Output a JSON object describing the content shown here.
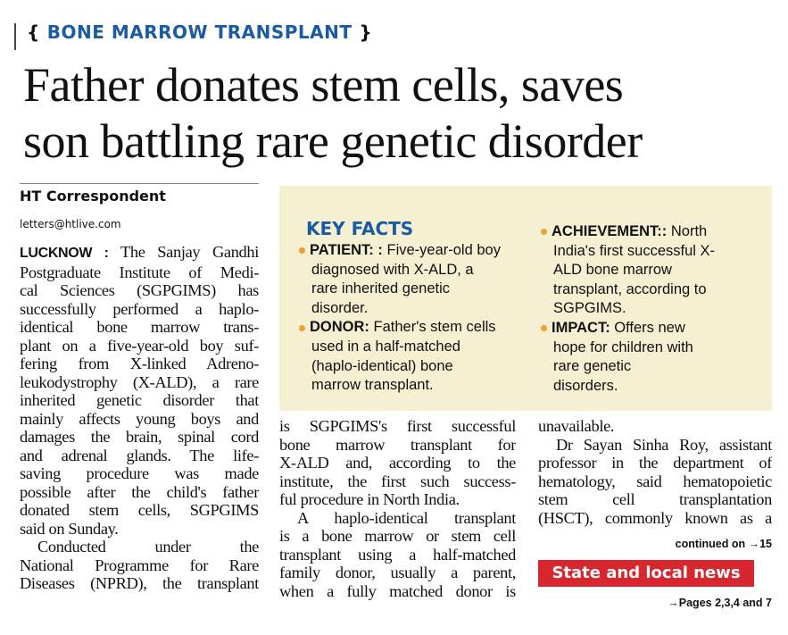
{
  "kicker": {
    "open": "{",
    "text": "BONE MARROW TRANSPLANT",
    "close": "}"
  },
  "headline": {
    "lines": [
      "Father donates stem cells, saves",
      "son battling rare genetic disorder"
    ]
  },
  "byline": {
    "author": "HT Correspondent",
    "email": "letters@htlive.com"
  },
  "key_facts": {
    "title": "KEY FACTS",
    "columns": [
      {
        "items": [
          {
            "label": "PATIENT: :",
            "lines": [
              "Five-year-old boy",
              "diagnosed with X-ALD, a",
              "rare inherited genetic",
              "disorder."
            ]
          },
          {
            "label": "DONOR:",
            "lines": [
              "Father's stem cells",
              "used in a half-matched",
              "(haplo-identical) bone",
              "marrow transplant."
            ]
          }
        ]
      },
      {
        "items": [
          {
            "label": "ACHIEVEMENT::",
            "lines": [
              "North",
              "India's first successful X-",
              "ALD bone marrow",
              "transplant, according to",
              "SGPGIMS."
            ]
          },
          {
            "label": "IMPACT:",
            "lines": [
              "Offers new",
              "hope for children with",
              "rare genetic",
              "disorders."
            ]
          }
        ]
      }
    ]
  },
  "body": {
    "dateline": "LUCKNOW :",
    "columns": [
      {
        "paragraphs": [
          {
            "lines": [
              "The Sanjay Gandhi",
              "Postgraduate Institute of Medi-",
              "cal Sciences (SGPGIMS) has",
              "successfully performed a haplo-",
              "identical bone marrow trans-",
              "plant on a five-year-old boy suf-",
              "fering from X-linked Adreno-",
              "leukodystrophy (X-ALD), a rare",
              "inherited genetic disorder that",
              "mainly affects young boys and",
              "damages the brain, spinal cord",
              "and adrenal glands. The life-",
              "saving procedure was made",
              "possible after the child's father",
              "donated stem cells, SGPGIMS",
              "said on Sunday."
            ]
          },
          {
            "lines": [
              "Conducted under the",
              "National Programme for Rare",
              "Diseases (NPRD), the transplant"
            ]
          }
        ]
      },
      {
        "paragraphs": [
          {
            "lines": [
              "is SGPGIMS's first successful",
              "bone marrow transplant for",
              "X-ALD and, according to the",
              "institute, the first such success-",
              "ful procedure in North India."
            ]
          },
          {
            "lines": [
              "A haplo-identical transplant",
              "is a bone marrow or stem cell",
              "transplant using a half-matched",
              "family donor, usually a parent,",
              "when a fully matched donor is"
            ]
          }
        ]
      },
      {
        "paragraphs": [
          {
            "lines": [
              "unavailable."
            ]
          },
          {
            "lines": [
              "Dr Sayan Sinha Roy, assistant",
              "professor in the department of",
              "hematology, said hematopoietic",
              "stem cell transplantation",
              "(HSCT), commonly known as a"
            ]
          }
        ]
      }
    ]
  },
  "continued": "continued on →15",
  "promo": {
    "title": "State and local news",
    "pages": "→Pages 2,3,4 and 7"
  }
}
